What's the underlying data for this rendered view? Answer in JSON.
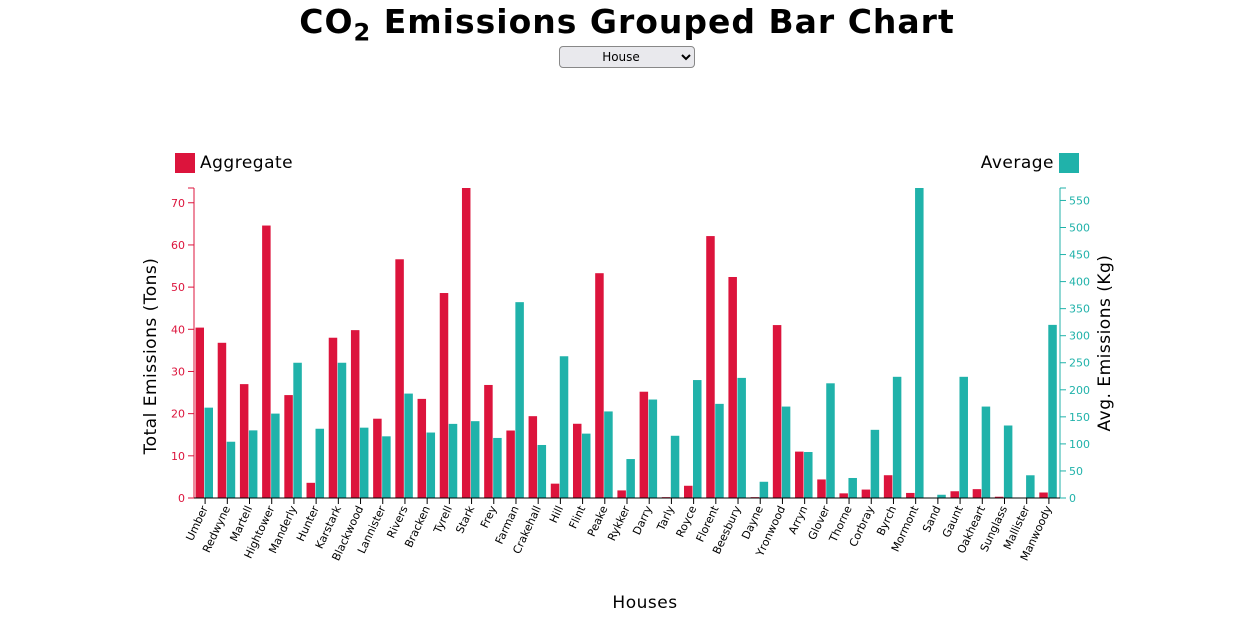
{
  "title": {
    "prefix": "CO",
    "subscript": "2",
    "suffix": " Emissions Grouped Bar Chart"
  },
  "dropdown": {
    "selected": "House"
  },
  "colors": {
    "aggregate": "#dc143c",
    "average": "#20b2aa"
  },
  "chart_data": {
    "type": "bar",
    "title": "CO2 Emissions Grouped Bar Chart",
    "xlabel": "Houses",
    "ylabel": "Total Emissions (Tons)",
    "y2label": "Avg. Emissions (Kg)",
    "ylim": [
      0,
      73.5
    ],
    "y2lim": [
      0,
      573
    ],
    "yticks": [
      0,
      10,
      20,
      30,
      40,
      50,
      60,
      70
    ],
    "y2ticks": [
      0,
      50,
      100,
      150,
      200,
      250,
      300,
      350,
      400,
      450,
      500,
      550
    ],
    "legend": {
      "left": "Aggregate",
      "right": "Average"
    },
    "categories": [
      "Umber",
      "Redwyne",
      "Martell",
      "Hightower",
      "Manderly",
      "Hunter",
      "Karstark",
      "Blackwood",
      "Lannister",
      "Rivers",
      "Bracken",
      "Tyrell",
      "Stark",
      "Frey",
      "Farman",
      "Crakehall",
      "Hill",
      "Flint",
      "Peake",
      "Rykker",
      "Darry",
      "Tarly",
      "Royce",
      "Florent",
      "Beesbury",
      "Dayne",
      "Yronwood",
      "Arryn",
      "Glover",
      "Thorne",
      "Corbray",
      "Byrch",
      "Mormont",
      "Sand",
      "Gaunt",
      "Oakheart",
      "Sunglass",
      "Mallister",
      "Manwoody"
    ],
    "series": [
      {
        "name": "Aggregate",
        "axis": "left",
        "values": [
          40.4,
          36.8,
          27.0,
          64.6,
          24.4,
          3.6,
          38.0,
          39.8,
          18.8,
          56.6,
          23.5,
          48.6,
          73.5,
          26.8,
          16.0,
          19.4,
          3.4,
          17.6,
          53.3,
          1.8,
          25.2,
          0.2,
          2.9,
          62.1,
          52.4,
          0.2,
          41.0,
          11.0,
          4.4,
          1.1,
          2.0,
          5.4,
          1.2,
          0.1,
          1.6,
          2.1,
          0.3,
          0.1,
          1.3
        ]
      },
      {
        "name": "Average",
        "axis": "right",
        "values": [
          167,
          104,
          125,
          156,
          250,
          128,
          250,
          130,
          114,
          193,
          121,
          137,
          142,
          111,
          362,
          98,
          262,
          119,
          160,
          72,
          182,
          115,
          218,
          174,
          222,
          30,
          169,
          85,
          212,
          37,
          126,
          224,
          573,
          6,
          224,
          169,
          134,
          42,
          320
        ]
      }
    ]
  }
}
